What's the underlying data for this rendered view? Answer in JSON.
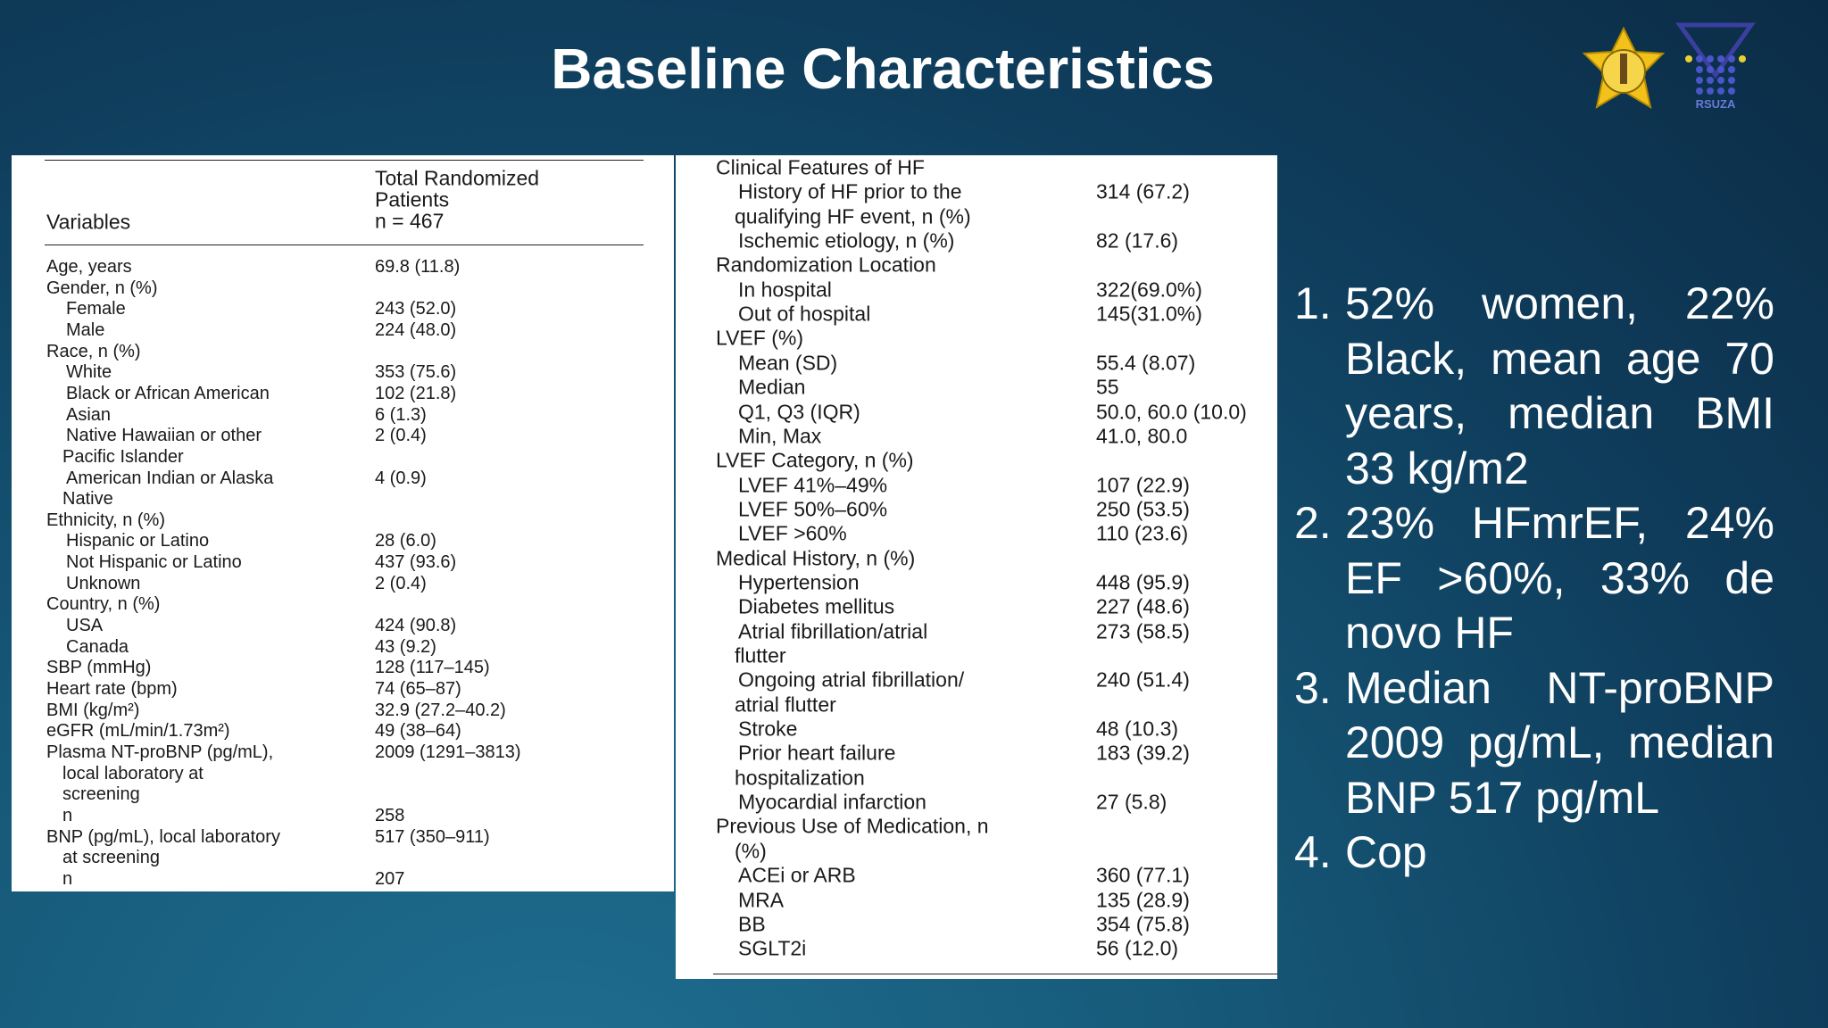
{
  "title": "Baseline Characteristics",
  "logos": {
    "rsuza_label": "RSUZA"
  },
  "left_table": {
    "header": {
      "variables": "Variables",
      "column": [
        "Total Randomized",
        "Patients",
        "n = 467"
      ]
    },
    "rows": [
      {
        "label": "Age, years",
        "value": "69.8 (11.8)"
      },
      {
        "label": "Gender, n (%)"
      },
      {
        "label": "Female",
        "value": "243 (52.0)"
      },
      {
        "label": "Male",
        "value": "224 (48.0)"
      },
      {
        "label": "Race, n (%)"
      },
      {
        "label": "White",
        "value": "353 (75.6)"
      },
      {
        "label": "Black or African American",
        "value": "102 (21.8)"
      },
      {
        "label": "Asian",
        "value": "6 (1.3)"
      },
      {
        "label": "Native Hawaiian or other",
        "value": "2 (0.4)"
      },
      {
        "label": "Pacific Islander"
      },
      {
        "label": "American Indian or Alaska",
        "value": "4 (0.9)"
      },
      {
        "label": "Native"
      },
      {
        "label": "Ethnicity, n (%)"
      },
      {
        "label": "Hispanic or Latino",
        "value": "28 (6.0)"
      },
      {
        "label": "Not Hispanic or Latino",
        "value": "437 (93.6)"
      },
      {
        "label": "Unknown",
        "value": "2 (0.4)"
      },
      {
        "label": "Country, n (%)"
      },
      {
        "label": "USA",
        "value": "424 (90.8)"
      },
      {
        "label": "Canada",
        "value": "43 (9.2)"
      },
      {
        "label": "SBP (mmHg)",
        "value": "128 (117–145)"
      },
      {
        "label": "Heart rate (bpm)",
        "value": "74 (65–87)"
      },
      {
        "label": "BMI (kg/m²)",
        "value": "32.9 (27.2–40.2)"
      },
      {
        "label": "eGFR (mL/min/1.73m²)",
        "value": "49 (38–64)"
      },
      {
        "label": "Plasma NT-proBNP (pg/mL),",
        "value": "2009 (1291–3813)"
      },
      {
        "label": "local laboratory at"
      },
      {
        "label": "screening"
      },
      {
        "label": "n",
        "value": "258"
      },
      {
        "label": "BNP (pg/mL), local laboratory",
        "value": "517 (350–911)"
      },
      {
        "label": "at screening"
      },
      {
        "label": "n",
        "value": "207"
      }
    ]
  },
  "right_table": {
    "rows": [
      {
        "label": "Clinical Features of HF"
      },
      {
        "label": "History of HF prior to the",
        "value": "314 (67.2)"
      },
      {
        "label": "qualifying HF event, n (%)"
      },
      {
        "label": "Ischemic etiology, n (%)",
        "value": "82 (17.6)"
      },
      {
        "label": "Randomization Location"
      },
      {
        "label": "In hospital",
        "value": "322(69.0%)"
      },
      {
        "label": "Out of hospital",
        "value": "145(31.0%)"
      },
      {
        "label": "LVEF (%)"
      },
      {
        "label": "Mean (SD)",
        "value": "55.4 (8.07)"
      },
      {
        "label": "Median",
        "value": "55"
      },
      {
        "label": "Q1, Q3 (IQR)",
        "value": "50.0, 60.0 (10.0)"
      },
      {
        "label": "Min, Max",
        "value": "41.0, 80.0"
      },
      {
        "label": "LVEF Category, n (%)"
      },
      {
        "label": "LVEF 41%–49%",
        "value": "107 (22.9)"
      },
      {
        "label": "LVEF 50%–60%",
        "value": "250 (53.5)"
      },
      {
        "label": "LVEF >60%",
        "value": "110 (23.6)"
      },
      {
        "label": "Medical History, n (%)"
      },
      {
        "label": "Hypertension",
        "value": "448 (95.9)"
      },
      {
        "label": "Diabetes mellitus",
        "value": "227 (48.6)"
      },
      {
        "label": "Atrial fibrillation/atrial",
        "value": "273 (58.5)"
      },
      {
        "label": "flutter"
      },
      {
        "label": "Ongoing atrial fibrillation/",
        "value": "240 (51.4)"
      },
      {
        "label": "atrial flutter"
      },
      {
        "label": "Stroke",
        "value": "48 (10.3)"
      },
      {
        "label": "Prior heart failure",
        "value": "183 (39.2)"
      },
      {
        "label": "hospitalization"
      },
      {
        "label": "Myocardial infarction",
        "value": "27 (5.8)"
      },
      {
        "label": "Previous Use of Medication, n"
      },
      {
        "label": "(%)"
      },
      {
        "label": "ACEi or ARB",
        "value": "360 (77.1)"
      },
      {
        "label": "MRA",
        "value": "135 (28.9)"
      },
      {
        "label": "BB",
        "value": "354 (75.8)"
      },
      {
        "label": "SGLT2i",
        "value": "56 (12.0)"
      }
    ]
  },
  "bullets": [
    {
      "number": "1.",
      "text": "52% women, 22% Black, mean age 70 years, median BMI 33 kg/m2"
    },
    {
      "number": "2.",
      "text": "23% HFmrEF, 24% EF >60%, 33% de novo HF"
    },
    {
      "number": "3.",
      "text": "Median NT-proBNP 2009 pg/mL, median BNP 517 pg/mL"
    },
    {
      "number": "4.",
      "text": "Cop"
    }
  ]
}
